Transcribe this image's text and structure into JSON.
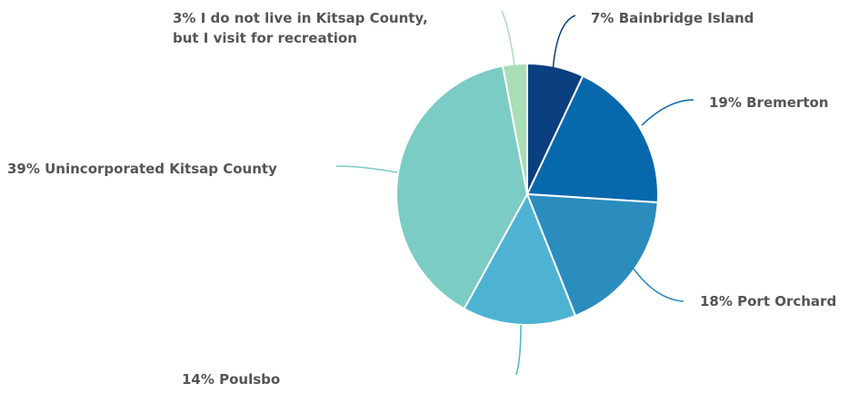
{
  "chart_data": {
    "type": "pie",
    "start_angle_deg": 0,
    "direction": "clockwise",
    "slices": [
      {
        "label": "7% Bainbridge Island",
        "value": 7,
        "color": "#0b3f7f"
      },
      {
        "label": "19% Bremerton",
        "value": 19,
        "color": "#0868ac"
      },
      {
        "label": "18% Port Orchard",
        "value": 18,
        "color": "#2b8cbe"
      },
      {
        "label": "14% Poulsbo",
        "value": 14,
        "color": "#4eb3d3"
      },
      {
        "label": "39% Unincorporated Kitsap County",
        "value": 39,
        "color": "#7bccc4"
      },
      {
        "label": "3% I do not live in Kitsap County, but I visit for recreation",
        "label_lines": [
          "3% I do not live in Kitsap County,",
          "but I visit for recreation"
        ],
        "value": 3,
        "color": "#a8ddb5"
      }
    ]
  }
}
